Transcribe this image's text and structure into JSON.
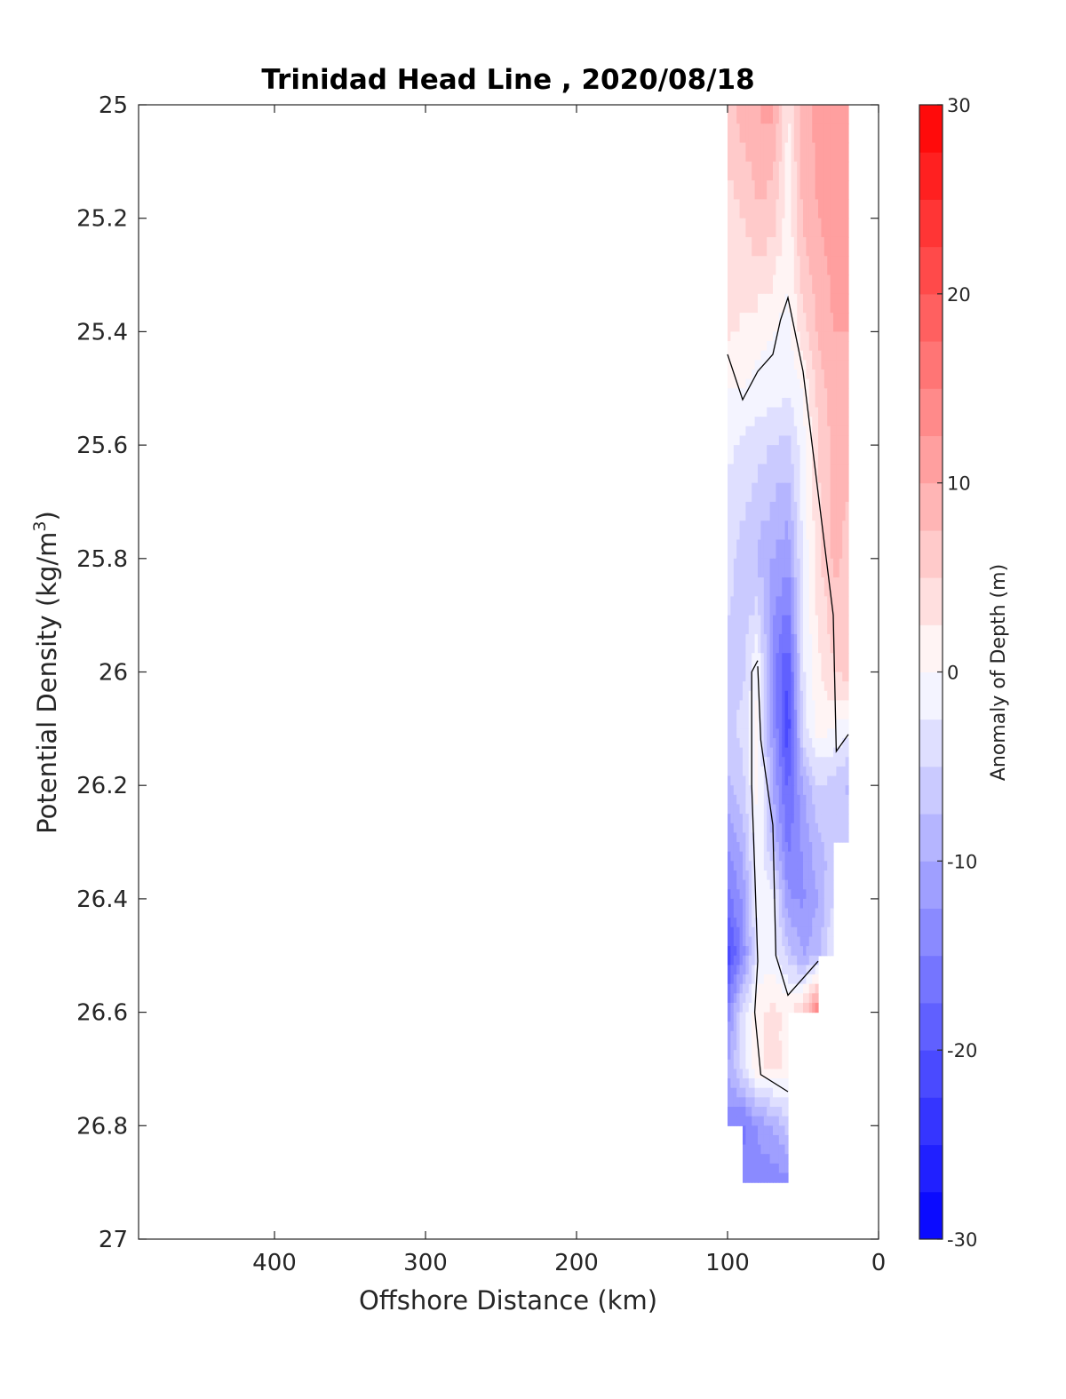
{
  "chart_data": {
    "type": "contour",
    "title": "Trinidad Head Line , 2020/08/18",
    "xlabel": "Offshore Distance (km)",
    "ylabel_main": "Potential Density (kg/m",
    "ylabel_sup": "3",
    "ylabel_close": ")",
    "xlim": [
      490,
      0
    ],
    "ylim": [
      27,
      25
    ],
    "x_reversed": true,
    "y_reversed": true,
    "x_ticks": [
      400,
      300,
      200,
      100,
      0
    ],
    "y_ticks": [
      25,
      25.2,
      25.4,
      25.6,
      25.8,
      26,
      26.2,
      26.4,
      26.6,
      26.8,
      27
    ],
    "grid": false,
    "colorbar": {
      "label": "Anomaly of Depth (m)",
      "range": [
        -30,
        30
      ],
      "ticks": [
        -30,
        -20,
        -10,
        0,
        10,
        20,
        30
      ],
      "step": 2.5,
      "low_color": "#0000ff",
      "mid_color": "#ffffff",
      "high_color": "#ff0000"
    },
    "stations_x": [
      100,
      90,
      80,
      70,
      60,
      50,
      40,
      30,
      20
    ],
    "density_levels": [
      25.0,
      25.2,
      25.4,
      25.5,
      25.6,
      25.8,
      26.0,
      26.1,
      26.2,
      26.3,
      26.4,
      26.5,
      26.6,
      26.7,
      26.8,
      26.9
    ],
    "anomaly_grid": [
      [
        6,
        9,
        10,
        11,
        2,
        9,
        11,
        12,
        10
      ],
      [
        4,
        5,
        7,
        6,
        1,
        8,
        10,
        11,
        10
      ],
      [
        3,
        2,
        1,
        0,
        -1,
        4,
        8,
        10,
        10
      ],
      [
        0,
        0,
        -1,
        -1,
        -2,
        0,
        6,
        9,
        9
      ],
      [
        -2,
        -3,
        -4,
        -5,
        -6,
        -1,
        5,
        8,
        8
      ],
      [
        -4,
        -6,
        -8,
        -10,
        -12,
        -2,
        4,
        8,
        7
      ],
      [
        -6,
        -6,
        0,
        -14,
        -20,
        -3,
        2,
        5,
        6
      ],
      [
        -6,
        -4,
        1,
        -12,
        -22,
        -4,
        1,
        0,
        -2
      ],
      [
        -8,
        -6,
        1,
        -10,
        -18,
        -10,
        -5,
        -6,
        -8
      ],
      [
        -12,
        -9,
        0,
        -8,
        -16,
        -12,
        -8,
        -7,
        -6
      ],
      [
        -16,
        -12,
        -1,
        -1,
        -12,
        -13,
        -10,
        -5,
        null
      ],
      [
        -22,
        -14,
        -2,
        -1,
        -6,
        -10,
        -8,
        -2,
        null
      ],
      [
        -14,
        -4,
        2,
        3,
        2,
        6,
        16,
        null,
        null
      ],
      [
        -10,
        -4,
        2,
        3,
        2,
        null,
        null,
        null,
        null
      ],
      [
        -14,
        -16,
        -12,
        -10,
        -6,
        null,
        null,
        null,
        null
      ],
      [
        null,
        -14,
        -14,
        -14,
        -14,
        null,
        null,
        null,
        null
      ]
    ],
    "zero_contours": [
      [
        [
          100,
          25.44
        ],
        [
          90,
          25.52
        ],
        [
          80,
          25.47
        ],
        [
          70,
          25.44
        ],
        [
          65,
          25.38
        ],
        [
          60,
          25.34
        ],
        [
          50,
          25.47
        ],
        [
          30,
          25.9
        ],
        [
          28,
          26.14
        ],
        [
          20,
          26.11
        ]
      ],
      [
        [
          80,
          25.99
        ],
        [
          78,
          26.12
        ],
        [
          70,
          26.27
        ],
        [
          68,
          26.5
        ],
        [
          60,
          26.57
        ],
        [
          50,
          26.54
        ],
        [
          40,
          26.51
        ]
      ],
      [
        [
          80,
          25.98
        ],
        [
          84,
          26.0
        ],
        [
          84,
          26.2
        ],
        [
          82,
          26.35
        ],
        [
          80,
          26.51
        ],
        [
          82,
          26.6
        ],
        [
          78,
          26.71
        ],
        [
          60,
          26.74
        ]
      ]
    ]
  }
}
